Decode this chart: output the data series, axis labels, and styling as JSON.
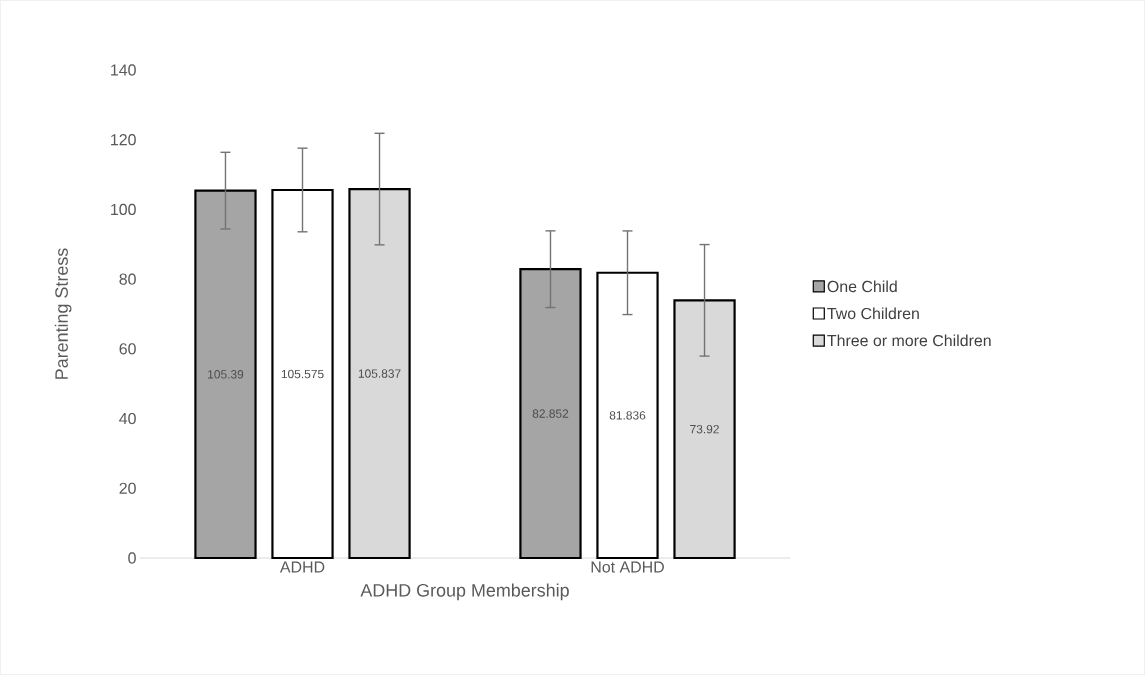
{
  "chart_data": {
    "type": "bar",
    "xlabel": "ADHD Group Membership",
    "ylabel": "Parenting Stress",
    "categories": [
      "ADHD",
      "Not ADHD"
    ],
    "series": [
      {
        "name": "One Child",
        "color": "#a5a5a5",
        "values": [
          105.39,
          82.852
        ],
        "errors": [
          11,
          11
        ]
      },
      {
        "name": "Two Children",
        "color": "#ffffff",
        "values": [
          105.575,
          81.836
        ],
        "errors": [
          12,
          12
        ]
      },
      {
        "name": "Three or more Children",
        "color": "#d9d9d9",
        "values": [
          105.837,
          73.92
        ],
        "errors": [
          16,
          16
        ]
      }
    ],
    "ylim": [
      0,
      140
    ],
    "yticks": [
      0,
      20,
      40,
      60,
      80,
      100,
      120,
      140
    ],
    "data_labels": true,
    "legend": "right"
  }
}
